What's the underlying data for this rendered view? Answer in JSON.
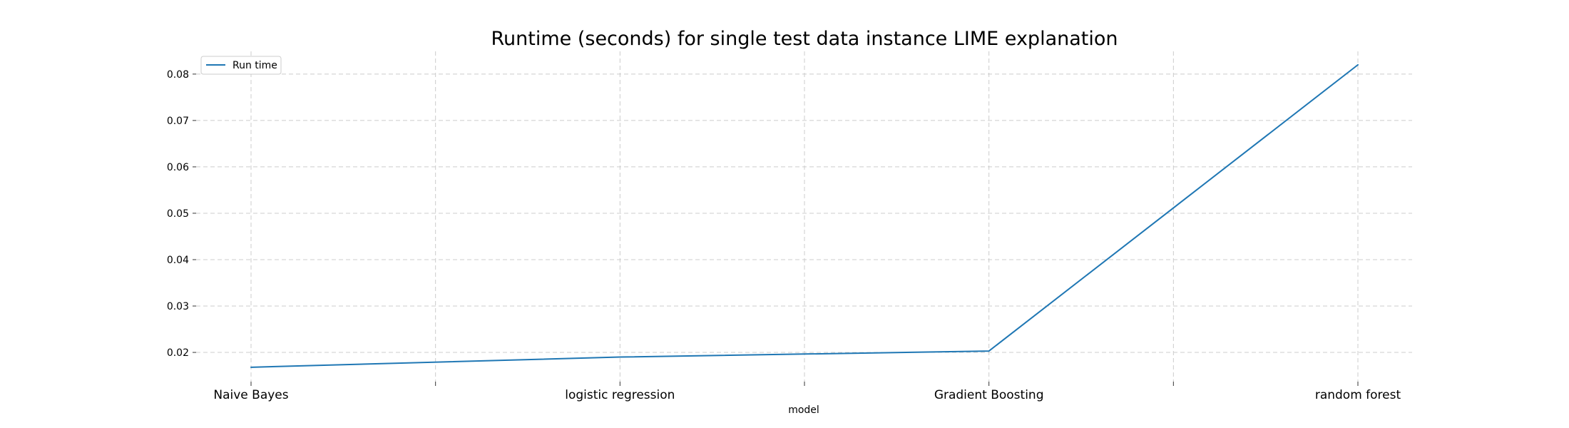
{
  "chart_data": {
    "type": "line",
    "title": "Runtime (seconds) for single test data instance LIME explanation",
    "xlabel": "model",
    "ylabel": "",
    "x_ticks": [
      "Naive Bayes",
      "",
      "logistic regression",
      "",
      "Gradient Boosting",
      "",
      "random forest"
    ],
    "x_labeled_ticks": [
      "Naive Bayes",
      "logistic regression",
      "Gradient Boosting",
      "random forest"
    ],
    "y_ticks": [
      "0.02",
      "0.03",
      "0.04",
      "0.05",
      "0.06",
      "0.07",
      "0.08"
    ],
    "ylim": [
      0.0137,
      0.0849
    ],
    "grid": true,
    "legend_position": "top-left",
    "series": [
      {
        "name": "Run time",
        "color": "#1f77b4",
        "points": [
          {
            "x": "Naive Bayes",
            "y": 0.0168
          },
          {
            "x": "logistic regression",
            "y": 0.019
          },
          {
            "x": "Gradient Boosting",
            "y": 0.0203
          },
          {
            "x": "random forest",
            "y": 0.082
          }
        ]
      }
    ]
  }
}
